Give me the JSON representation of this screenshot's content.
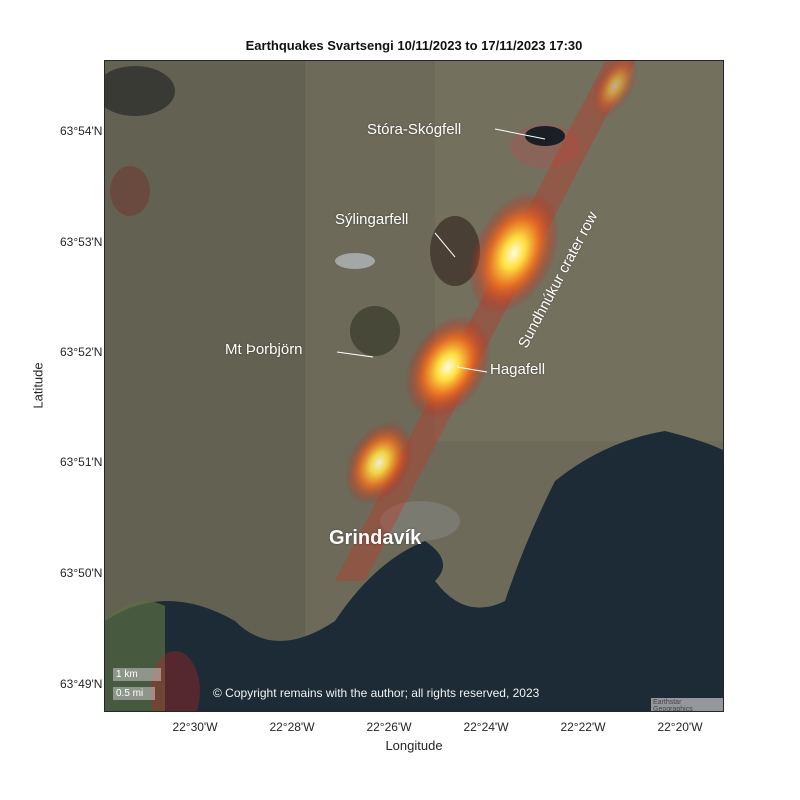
{
  "title": "Earthquakes Svartsengi 10/11/2023 to 17/11/2023 17:30",
  "axes": {
    "xlabel": "Longitude",
    "ylabel": "Latitude",
    "xticks": [
      "22°30'W",
      "22°28'W",
      "22°26'W",
      "22°24'W",
      "22°22'W",
      "22°20'W"
    ],
    "yticks": [
      "63°54'N",
      "63°53'N",
      "63°52'N",
      "63°51'N",
      "63°50'N",
      "63°49'N"
    ]
  },
  "labels": {
    "stora_skogfell": "Stóra-Skógfell",
    "sylingarfell": "Sýlingarfell",
    "crater_row": "Sundhnúkur crater row",
    "thorbjorn": "Mt Þorbjörn",
    "hagafell": "Hagafell",
    "grindavik": "Grindavík"
  },
  "scale_bar": {
    "km": "1 km",
    "mi": "0.5 mi"
  },
  "copyright": "© Copyright remains with the author; all rights reserved, 2023",
  "attribution": "Earthstar Geographics",
  "colors": {
    "heat_core": "#fffbd0",
    "heat_mid": "#ffb020",
    "heat_edge": "#d02020",
    "sea": "#1c2b36",
    "land": "#6e6a58"
  }
}
